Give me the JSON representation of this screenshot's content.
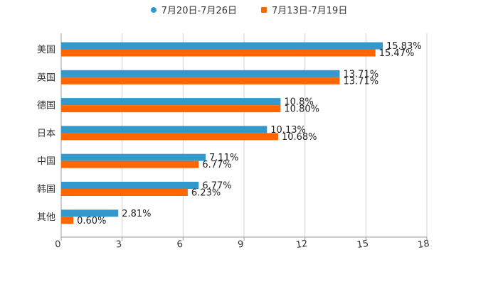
{
  "chart_data": {
    "type": "bar",
    "orientation": "horizontal",
    "categories": [
      "美国",
      "英国",
      "德国",
      "日本",
      "中国",
      "韩国",
      "其他"
    ],
    "series": [
      {
        "name": "7月20日-7月26日",
        "color": "#3399cc",
        "marker": "circle",
        "values": [
          15.83,
          13.71,
          10.8,
          10.13,
          7.11,
          6.77,
          2.81
        ],
        "labels": [
          "15.83%",
          "13.71%",
          "10.8%",
          "10.13%",
          "7.11%",
          "6.77%",
          "2.81%"
        ]
      },
      {
        "name": "7月13日-7月19日",
        "color": "#ff6600",
        "marker": "square",
        "values": [
          15.47,
          13.71,
          10.8,
          10.68,
          6.77,
          6.23,
          0.6
        ],
        "labels": [
          "15.47%",
          "13.71%",
          "10.80%",
          "10.68%",
          "6.77%",
          "6.23%",
          "0.60%"
        ]
      }
    ],
    "xlim": [
      0,
      18
    ],
    "xticks": [
      "0",
      "3",
      "6",
      "9",
      "12",
      "15",
      "18"
    ],
    "grid": true,
    "legend_position": "top-center",
    "title": "",
    "xlabel": "",
    "ylabel": ""
  }
}
